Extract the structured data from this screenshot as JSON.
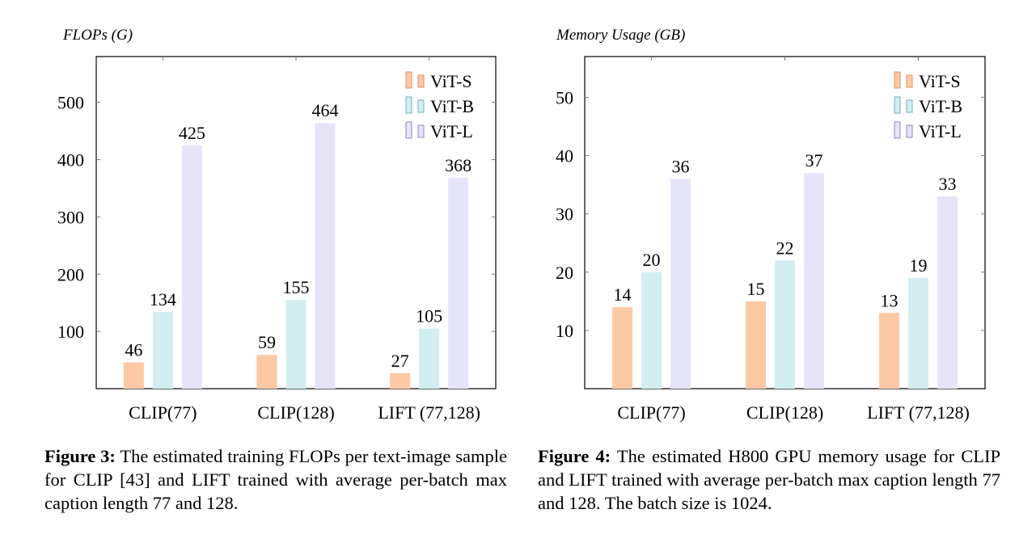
{
  "chart_data": [
    {
      "type": "bar",
      "ylabel": "FLOPs (G)",
      "categories": [
        "CLIP(77)",
        "CLIP(128)",
        "LIFT (77,128)"
      ],
      "ylim": [
        0,
        580
      ],
      "yticks": [
        100,
        200,
        300,
        400,
        500
      ],
      "legend_position": "top-right",
      "series": [
        {
          "name": "ViT-S",
          "values": [
            46,
            59,
            27
          ],
          "color": "#fdc9a5",
          "stroke": "#d9946a"
        },
        {
          "name": "ViT-B",
          "values": [
            134,
            155,
            105
          ],
          "color": "#d3eef0",
          "stroke": "#6fb3b8"
        },
        {
          "name": "ViT-L",
          "values": [
            425,
            464,
            368
          ],
          "color": "#e6e4f9",
          "stroke": "#8a86c4"
        }
      ],
      "grid": false
    },
    {
      "type": "bar",
      "ylabel": "Memory Usage (GB)",
      "categories": [
        "CLIP(77)",
        "CLIP(128)",
        "LIFT (77,128)"
      ],
      "ylim": [
        0,
        57
      ],
      "yticks": [
        10,
        20,
        30,
        40,
        50
      ],
      "legend_position": "top-right",
      "series": [
        {
          "name": "ViT-S",
          "values": [
            14,
            15,
            13
          ],
          "color": "#fdc9a5",
          "stroke": "#d9946a"
        },
        {
          "name": "ViT-B",
          "values": [
            20,
            22,
            19
          ],
          "color": "#d3eef0",
          "stroke": "#6fb3b8"
        },
        {
          "name": "ViT-L",
          "values": [
            36,
            37,
            33
          ],
          "color": "#e6e4f9",
          "stroke": "#8a86c4"
        }
      ],
      "grid": false
    }
  ],
  "captions": [
    {
      "label": "Figure 3:",
      "text": " The estimated training FLOPs per text-image sample for CLIP [43] and LIFT trained with average per-batch max caption length 77 and 128."
    },
    {
      "label": "Figure 4:",
      "text": " The estimated H800 GPU memory usage for CLIP and LIFT trained with average per-batch max caption length 77 and 128. The batch size is 1024."
    }
  ]
}
